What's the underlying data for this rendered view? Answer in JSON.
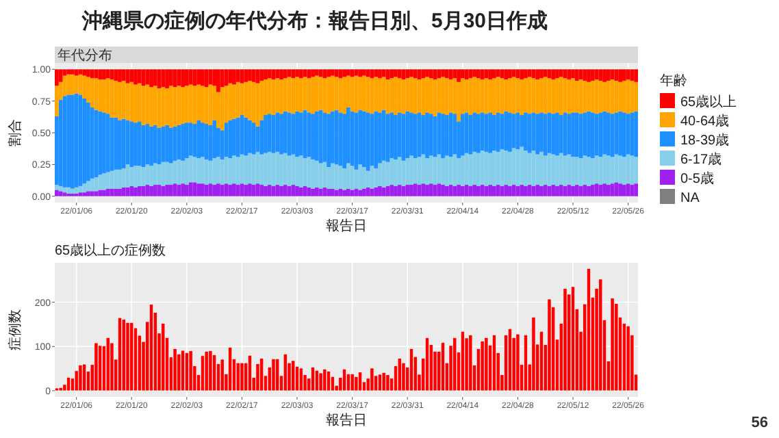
{
  "chart_data": [
    {
      "type": "bar",
      "stacked": true,
      "title": "沖縄県の症例の年代分布：報告日別、5月30日作成",
      "subtitle": "年代分布",
      "xlabel": "報告日",
      "ylabel": "割合",
      "legend_title": "年齢",
      "legend": "right",
      "grid": true,
      "xlim": [
        "--01-01",
        "--05-29"
      ],
      "ylim": [
        -0.05,
        1.05
      ],
      "xticks": [
        {
          "value": "--01-06",
          "label": "22/01/06"
        },
        {
          "value": "--01-20",
          "label": "22/01/20"
        },
        {
          "value": "--02-03",
          "label": "22/02/03"
        },
        {
          "value": "--02-17",
          "label": "22/02/17"
        },
        {
          "value": "--03-03",
          "label": "22/03/03"
        },
        {
          "value": "--03-17",
          "label": "22/03/17"
        },
        {
          "value": "--03-31",
          "label": "22/03/31"
        },
        {
          "value": "--04-14",
          "label": "22/04/14"
        },
        {
          "value": "--04-28",
          "label": "22/04/28"
        },
        {
          "value": "--05-12",
          "label": "22/05/12"
        },
        {
          "value": "--05-26",
          "label": "22/05/26"
        }
      ],
      "yticks": [
        {
          "value": 0,
          "label": "0.00"
        },
        {
          "value": 0.25,
          "label": "0.25"
        },
        {
          "value": 0.5,
          "label": "0.50"
        },
        {
          "value": 0.75,
          "label": "0.75"
        },
        {
          "value": 1,
          "label": "1.00"
        }
      ],
      "x": [
        "--01-01",
        "--01-02",
        "--01-03",
        "--01-04",
        "--01-05",
        "--01-06",
        "--01-07",
        "--01-08",
        "--01-09",
        "--01-10",
        "--01-11",
        "--01-12",
        "--01-13",
        "--01-14",
        "--01-15",
        "--01-16",
        "--01-17",
        "--01-18",
        "--01-19",
        "--01-20",
        "--01-21",
        "--01-22",
        "--01-23",
        "--01-24",
        "--01-25",
        "--01-26",
        "--01-27",
        "--01-28",
        "--01-29",
        "--01-30",
        "--01-31",
        "--02-01",
        "--02-02",
        "--02-03",
        "--02-04",
        "--02-05",
        "--02-06",
        "--02-07",
        "--02-08",
        "--02-09",
        "--02-10",
        "--02-11",
        "--02-12",
        "--02-13",
        "--02-14",
        "--02-15",
        "--02-16",
        "--02-17",
        "--02-18",
        "--02-19",
        "--02-20",
        "--02-21",
        "--02-22",
        "--02-23",
        "--02-24",
        "--02-25",
        "--02-26",
        "--02-27",
        "--02-28",
        "--03-01",
        "--03-02",
        "--03-03",
        "--03-04",
        "--03-05",
        "--03-06",
        "--03-07",
        "--03-08",
        "--03-09",
        "--03-10",
        "--03-11",
        "--03-12",
        "--03-13",
        "--03-14",
        "--03-15",
        "--03-16",
        "--03-17",
        "--03-18",
        "--03-19",
        "--03-20",
        "--03-21",
        "--03-22",
        "--03-23",
        "--03-24",
        "--03-25",
        "--03-26",
        "--03-27",
        "--03-28",
        "--03-29",
        "--03-30",
        "--03-31",
        "--04-01",
        "--04-02",
        "--04-03",
        "--04-04",
        "--04-05",
        "--04-06",
        "--04-07",
        "--04-08",
        "--04-09",
        "--04-10",
        "--04-11",
        "--04-12",
        "--04-13",
        "--04-14",
        "--04-15",
        "--04-16",
        "--04-17",
        "--04-18",
        "--04-19",
        "--04-20",
        "--04-21",
        "--04-22",
        "--04-23",
        "--04-24",
        "--04-25",
        "--04-26",
        "--04-27",
        "--04-28",
        "--04-29",
        "--04-30",
        "--05-01",
        "--05-02",
        "--05-03",
        "--05-04",
        "--05-05",
        "--05-06",
        "--05-07",
        "--05-08",
        "--05-09",
        "--05-10",
        "--05-11",
        "--05-12",
        "--05-13",
        "--05-14",
        "--05-15",
        "--05-16",
        "--05-17",
        "--05-18",
        "--05-19",
        "--05-20",
        "--05-21",
        "--05-22",
        "--05-23",
        "--05-24",
        "--05-25",
        "--05-26",
        "--05-27",
        "--05-28"
      ],
      "series": [
        {
          "name": "NA",
          "color": "#7f7f7f",
          "values": [
            0,
            0,
            0,
            0,
            0,
            0,
            0,
            0,
            0,
            0,
            0,
            0,
            0,
            0,
            0,
            0,
            0,
            0,
            0,
            0,
            0,
            0,
            0,
            0,
            0,
            0,
            0,
            0,
            0,
            0,
            0,
            0,
            0,
            0,
            0,
            0,
            0,
            0,
            0,
            0,
            0,
            0,
            0,
            0,
            0,
            0,
            0,
            0,
            0,
            0,
            0,
            0,
            0,
            0,
            0,
            0,
            0,
            0,
            0,
            0,
            0,
            0,
            0,
            0,
            0,
            0,
            0,
            0,
            0,
            0,
            0,
            0,
            0,
            0,
            0,
            0,
            0,
            0,
            0,
            0,
            0,
            0,
            0,
            0,
            0,
            0,
            0,
            0,
            0,
            0,
            0,
            0,
            0,
            0,
            0,
            0,
            0,
            0,
            0,
            0,
            0,
            0,
            0,
            0,
            0,
            0,
            0,
            0,
            0,
            0,
            0,
            0,
            0,
            0,
            0,
            0,
            0,
            0,
            0,
            0,
            0,
            0,
            0,
            0,
            0,
            0,
            0,
            0,
            0,
            0,
            0,
            0,
            0,
            0,
            0,
            0,
            0,
            0,
            0,
            0,
            0,
            0,
            0,
            0,
            0,
            0,
            0,
            0
          ]
        },
        {
          "name": "0-5歳",
          "color": "#a020f0",
          "values": [
            0.05,
            0.04,
            0.03,
            0.02,
            0.02,
            0.02,
            0.03,
            0.03,
            0.04,
            0.04,
            0.04,
            0.05,
            0.05,
            0.06,
            0.06,
            0.06,
            0.06,
            0.07,
            0.07,
            0.08,
            0.07,
            0.08,
            0.08,
            0.09,
            0.08,
            0.09,
            0.09,
            0.08,
            0.09,
            0.09,
            0.1,
            0.09,
            0.1,
            0.09,
            0.11,
            0.11,
            0.1,
            0.1,
            0.09,
            0.1,
            0.09,
            0.1,
            0.09,
            0.1,
            0.09,
            0.1,
            0.09,
            0.1,
            0.09,
            0.1,
            0.09,
            0.1,
            0.09,
            0.08,
            0.09,
            0.08,
            0.09,
            0.08,
            0.09,
            0.08,
            0.09,
            0.08,
            0.07,
            0.08,
            0.07,
            0.06,
            0.07,
            0.06,
            0.07,
            0.06,
            0.06,
            0.05,
            0.06,
            0.05,
            0.06,
            0.05,
            0.06,
            0.05,
            0.06,
            0.07,
            0.06,
            0.07,
            0.08,
            0.07,
            0.08,
            0.09,
            0.08,
            0.09,
            0.08,
            0.09,
            0.09,
            0.1,
            0.09,
            0.1,
            0.09,
            0.1,
            0.09,
            0.1,
            0.09,
            0.08,
            0.09,
            0.08,
            0.09,
            0.08,
            0.09,
            0.08,
            0.09,
            0.08,
            0.09,
            0.08,
            0.09,
            0.08,
            0.09,
            0.08,
            0.09,
            0.08,
            0.09,
            0.08,
            0.09,
            0.08,
            0.09,
            0.08,
            0.09,
            0.08,
            0.09,
            0.08,
            0.09,
            0.08,
            0.09,
            0.08,
            0.09,
            0.08,
            0.09,
            0.08,
            0.09,
            0.08,
            0.09,
            0.1,
            0.09,
            0.1,
            0.09,
            0.1,
            0.11,
            0.1,
            0.09,
            0.1,
            0.09,
            0.1
          ]
        },
        {
          "name": "6-17歳",
          "color": "#87ceeb",
          "values": [
            0.04,
            0.04,
            0.04,
            0.05,
            0.04,
            0.05,
            0.05,
            0.07,
            0.08,
            0.1,
            0.11,
            0.12,
            0.13,
            0.13,
            0.14,
            0.15,
            0.15,
            0.15,
            0.18,
            0.15,
            0.17,
            0.16,
            0.15,
            0.16,
            0.16,
            0.17,
            0.16,
            0.19,
            0.18,
            0.17,
            0.18,
            0.2,
            0.18,
            0.21,
            0.21,
            0.2,
            0.2,
            0.21,
            0.2,
            0.18,
            0.21,
            0.21,
            0.2,
            0.21,
            0.21,
            0.22,
            0.22,
            0.23,
            0.23,
            0.24,
            0.24,
            0.25,
            0.24,
            0.26,
            0.26,
            0.26,
            0.26,
            0.25,
            0.25,
            0.24,
            0.24,
            0.23,
            0.25,
            0.22,
            0.24,
            0.23,
            0.21,
            0.2,
            0.2,
            0.17,
            0.2,
            0.2,
            0.18,
            0.17,
            0.2,
            0.19,
            0.15,
            0.2,
            0.17,
            0.13,
            0.18,
            0.15,
            0.18,
            0.21,
            0.19,
            0.21,
            0.21,
            0.22,
            0.2,
            0.21,
            0.23,
            0.2,
            0.22,
            0.23,
            0.21,
            0.22,
            0.22,
            0.23,
            0.21,
            0.24,
            0.22,
            0.25,
            0.21,
            0.24,
            0.25,
            0.25,
            0.26,
            0.26,
            0.27,
            0.27,
            0.25,
            0.28,
            0.26,
            0.29,
            0.27,
            0.27,
            0.29,
            0.29,
            0.3,
            0.28,
            0.25,
            0.28,
            0.24,
            0.27,
            0.23,
            0.26,
            0.24,
            0.24,
            0.25,
            0.24,
            0.24,
            0.23,
            0.22,
            0.22,
            0.23,
            0.23,
            0.21,
            0.22,
            0.22,
            0.23,
            0.23,
            0.21,
            0.22,
            0.22,
            0.22,
            0.23,
            0.23,
            0.21
          ]
        },
        {
          "name": "18-39歳",
          "color": "#1e90ff",
          "values": [
            0.54,
            0.68,
            0.72,
            0.73,
            0.74,
            0.74,
            0.72,
            0.67,
            0.62,
            0.56,
            0.53,
            0.5,
            0.48,
            0.46,
            0.42,
            0.41,
            0.39,
            0.39,
            0.35,
            0.36,
            0.34,
            0.35,
            0.33,
            0.32,
            0.31,
            0.3,
            0.29,
            0.28,
            0.29,
            0.28,
            0.27,
            0.27,
            0.29,
            0.28,
            0.26,
            0.26,
            0.3,
            0.27,
            0.28,
            0.28,
            0.3,
            0.23,
            0.23,
            0.27,
            0.3,
            0.29,
            0.31,
            0.31,
            0.3,
            0.26,
            0.25,
            0.2,
            0.27,
            0.3,
            0.3,
            0.3,
            0.31,
            0.32,
            0.33,
            0.34,
            0.32,
            0.36,
            0.34,
            0.38,
            0.35,
            0.36,
            0.39,
            0.42,
            0.39,
            0.42,
            0.41,
            0.43,
            0.42,
            0.43,
            0.44,
            0.43,
            0.45,
            0.43,
            0.44,
            0.46,
            0.41,
            0.45,
            0.4,
            0.4,
            0.38,
            0.36,
            0.35,
            0.35,
            0.37,
            0.37,
            0.34,
            0.35,
            0.35,
            0.31,
            0.36,
            0.33,
            0.32,
            0.33,
            0.35,
            0.32,
            0.35,
            0.32,
            0.29,
            0.33,
            0.32,
            0.31,
            0.31,
            0.31,
            0.3,
            0.3,
            0.32,
            0.28,
            0.31,
            0.28,
            0.31,
            0.31,
            0.27,
            0.29,
            0.25,
            0.3,
            0.31,
            0.3,
            0.32,
            0.31,
            0.33,
            0.32,
            0.32,
            0.34,
            0.3,
            0.34,
            0.32,
            0.35,
            0.35,
            0.35,
            0.34,
            0.36,
            0.36,
            0.33,
            0.35,
            0.34,
            0.34,
            0.34,
            0.33,
            0.35,
            0.35,
            0.32,
            0.34,
            0.36
          ]
        },
        {
          "name": "40-64歳",
          "color": "#ffa500",
          "values": [
            0.24,
            0.14,
            0.16,
            0.16,
            0.16,
            0.14,
            0.16,
            0.18,
            0.2,
            0.23,
            0.25,
            0.25,
            0.26,
            0.28,
            0.3,
            0.29,
            0.3,
            0.3,
            0.29,
            0.31,
            0.3,
            0.3,
            0.31,
            0.31,
            0.31,
            0.31,
            0.31,
            0.31,
            0.29,
            0.33,
            0.31,
            0.31,
            0.29,
            0.29,
            0.3,
            0.3,
            0.28,
            0.29,
            0.29,
            0.32,
            0.27,
            0.28,
            0.34,
            0.29,
            0.29,
            0.27,
            0.28,
            0.25,
            0.28,
            0.31,
            0.32,
            0.34,
            0.31,
            0.28,
            0.28,
            0.28,
            0.27,
            0.27,
            0.26,
            0.28,
            0.28,
            0.27,
            0.27,
            0.26,
            0.27,
            0.29,
            0.28,
            0.26,
            0.27,
            0.29,
            0.28,
            0.26,
            0.27,
            0.29,
            0.25,
            0.27,
            0.29,
            0.26,
            0.28,
            0.28,
            0.28,
            0.27,
            0.27,
            0.26,
            0.27,
            0.27,
            0.3,
            0.27,
            0.27,
            0.26,
            0.28,
            0.28,
            0.26,
            0.29,
            0.28,
            0.28,
            0.29,
            0.27,
            0.29,
            0.29,
            0.26,
            0.28,
            0.31,
            0.28,
            0.26,
            0.29,
            0.28,
            0.28,
            0.26,
            0.28,
            0.26,
            0.29,
            0.28,
            0.28,
            0.25,
            0.27,
            0.29,
            0.27,
            0.28,
            0.27,
            0.29,
            0.27,
            0.27,
            0.27,
            0.29,
            0.27,
            0.27,
            0.27,
            0.3,
            0.27,
            0.27,
            0.27,
            0.25,
            0.27,
            0.25,
            0.23,
            0.25,
            0.27,
            0.25,
            0.23,
            0.25,
            0.27,
            0.25,
            0.23,
            0.25,
            0.27,
            0.25,
            0.23
          ]
        },
        {
          "name": "65歳以上",
          "color": "#ff0000",
          "values": [
            0.13,
            0.1,
            0.05,
            0.04,
            0.04,
            0.05,
            0.04,
            0.05,
            0.06,
            0.07,
            0.07,
            0.08,
            0.08,
            0.07,
            0.08,
            0.09,
            0.1,
            0.09,
            0.11,
            0.1,
            0.12,
            0.11,
            0.13,
            0.12,
            0.14,
            0.13,
            0.15,
            0.14,
            0.15,
            0.13,
            0.14,
            0.13,
            0.14,
            0.13,
            0.12,
            0.13,
            0.12,
            0.13,
            0.14,
            0.12,
            0.13,
            0.18,
            0.14,
            0.13,
            0.11,
            0.12,
            0.1,
            0.11,
            0.1,
            0.09,
            0.1,
            0.11,
            0.09,
            0.08,
            0.07,
            0.08,
            0.07,
            0.08,
            0.07,
            0.06,
            0.07,
            0.06,
            0.07,
            0.06,
            0.07,
            0.06,
            0.05,
            0.06,
            0.07,
            0.06,
            0.05,
            0.06,
            0.07,
            0.06,
            0.05,
            0.06,
            0.05,
            0.06,
            0.05,
            0.06,
            0.07,
            0.06,
            0.07,
            0.06,
            0.08,
            0.07,
            0.06,
            0.07,
            0.08,
            0.07,
            0.06,
            0.07,
            0.08,
            0.07,
            0.06,
            0.07,
            0.08,
            0.07,
            0.06,
            0.07,
            0.08,
            0.07,
            0.1,
            0.07,
            0.08,
            0.07,
            0.06,
            0.07,
            0.08,
            0.07,
            0.08,
            0.07,
            0.06,
            0.07,
            0.08,
            0.07,
            0.06,
            0.07,
            0.08,
            0.07,
            0.06,
            0.07,
            0.08,
            0.07,
            0.06,
            0.07,
            0.08,
            0.07,
            0.06,
            0.07,
            0.08,
            0.07,
            0.09,
            0.08,
            0.09,
            0.1,
            0.09,
            0.08,
            0.09,
            0.1,
            0.09,
            0.08,
            0.09,
            0.1,
            0.09,
            0.08,
            0.09,
            0.1
          ]
        }
      ]
    },
    {
      "type": "bar",
      "title": "65歳以上の症例数",
      "xlabel": "報告日",
      "ylabel": "症例数",
      "grid": true,
      "annotations": [
        "56"
      ],
      "xlim": [
        "--01-01",
        "--05-29"
      ],
      "ylim": [
        -14,
        289
      ],
      "xticks": [
        {
          "value": "--01-06",
          "label": "22/01/06"
        },
        {
          "value": "--01-20",
          "label": "22/01/20"
        },
        {
          "value": "--02-03",
          "label": "22/02/03"
        },
        {
          "value": "--02-17",
          "label": "22/02/17"
        },
        {
          "value": "--03-03",
          "label": "22/03/03"
        },
        {
          "value": "--03-17",
          "label": "22/03/17"
        },
        {
          "value": "--03-31",
          "label": "22/03/31"
        },
        {
          "value": "--04-14",
          "label": "22/04/14"
        },
        {
          "value": "--04-28",
          "label": "22/04/28"
        },
        {
          "value": "--05-12",
          "label": "22/05/12"
        },
        {
          "value": "--05-26",
          "label": "22/05/26"
        }
      ],
      "yticks": [
        0,
        100,
        200
      ],
      "x": [
        "--01-01",
        "--01-02",
        "--01-03",
        "--01-04",
        "--01-05",
        "--01-06",
        "--01-07",
        "--01-08",
        "--01-09",
        "--01-10",
        "--01-11",
        "--01-12",
        "--01-13",
        "--01-14",
        "--01-15",
        "--01-16",
        "--01-17",
        "--01-18",
        "--01-19",
        "--01-20",
        "--01-21",
        "--01-22",
        "--01-23",
        "--01-24",
        "--01-25",
        "--01-26",
        "--01-27",
        "--01-28",
        "--01-29",
        "--01-30",
        "--01-31",
        "--02-01",
        "--02-02",
        "--02-03",
        "--02-04",
        "--02-05",
        "--02-06",
        "--02-07",
        "--02-08",
        "--02-09",
        "--02-10",
        "--02-11",
        "--02-12",
        "--02-13",
        "--02-14",
        "--02-15",
        "--02-16",
        "--02-17",
        "--02-18",
        "--02-19",
        "--02-20",
        "--02-21",
        "--02-22",
        "--02-23",
        "--02-24",
        "--02-25",
        "--02-26",
        "--02-27",
        "--02-28",
        "--03-01",
        "--03-02",
        "--03-03",
        "--03-04",
        "--03-05",
        "--03-06",
        "--03-07",
        "--03-08",
        "--03-09",
        "--03-10",
        "--03-11",
        "--03-12",
        "--03-13",
        "--03-14",
        "--03-15",
        "--03-16",
        "--03-17",
        "--03-18",
        "--03-19",
        "--03-20",
        "--03-21",
        "--03-22",
        "--03-23",
        "--03-24",
        "--03-25",
        "--03-26",
        "--03-27",
        "--03-28",
        "--03-29",
        "--03-30",
        "--03-31",
        "--04-01",
        "--04-02",
        "--04-03",
        "--04-04",
        "--04-05",
        "--04-06",
        "--04-07",
        "--04-08",
        "--04-09",
        "--04-10",
        "--04-11",
        "--04-12",
        "--04-13",
        "--04-14",
        "--04-15",
        "--04-16",
        "--04-17",
        "--04-18",
        "--04-19",
        "--04-20",
        "--04-21",
        "--04-22",
        "--04-23",
        "--04-24",
        "--04-25",
        "--04-26",
        "--04-27",
        "--04-28",
        "--04-29",
        "--04-30",
        "--05-01",
        "--05-02",
        "--05-03",
        "--05-04",
        "--05-05",
        "--05-06",
        "--05-07",
        "--05-08",
        "--05-09",
        "--05-10",
        "--05-11",
        "--05-12",
        "--05-13",
        "--05-14",
        "--05-15",
        "--05-16",
        "--05-17",
        "--05-18",
        "--05-19",
        "--05-20",
        "--05-21",
        "--05-22",
        "--05-23",
        "--05-24",
        "--05-25",
        "--05-26",
        "--05-27",
        "--05-28"
      ],
      "series": [
        {
          "color": "#ff0000",
          "values": [
            6,
            7,
            14,
            30,
            28,
            45,
            58,
            60,
            44,
            59,
            108,
            102,
            101,
            120,
            108,
            71,
            165,
            161,
            154,
            154,
            142,
            125,
            111,
            156,
            195,
            177,
            130,
            152,
            120,
            76,
            95,
            83,
            91,
            86,
            90,
            56,
            36,
            79,
            89,
            90,
            81,
            61,
            71,
            38,
            98,
            72,
            63,
            63,
            63,
            80,
            30,
            61,
            73,
            34,
            53,
            72,
            72,
            34,
            83,
            63,
            68,
            55,
            51,
            36,
            28,
            53,
            46,
            40,
            49,
            44,
            32,
            12,
            30,
            49,
            38,
            38,
            32,
            42,
            20,
            28,
            51,
            34,
            37,
            41,
            36,
            28,
            56,
            73,
            63,
            53,
            95,
            77,
            37,
            73,
            120,
            104,
            89,
            89,
            109,
            63,
            102,
            120,
            87,
            134,
            119,
            126,
            58,
            95,
            112,
            120,
            103,
            126,
            86,
            36,
            126,
            140,
            120,
            128,
            59,
            126,
            60,
            166,
            105,
            134,
            104,
            207,
            189,
            116,
            152,
            231,
            218,
            235,
            185,
            134,
            196,
            276,
            211,
            231,
            252,
            160,
            67,
            209,
            197,
            166,
            152,
            146,
            126,
            37
          ]
        }
      ]
    }
  ]
}
